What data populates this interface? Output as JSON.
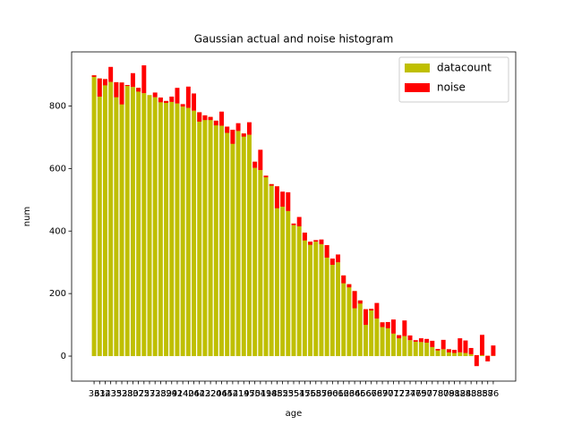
{
  "chart_data": {
    "type": "stacked_bar",
    "title": "Gaussian actual and noise histogram",
    "x_label": "age",
    "y_label": "num",
    "categories": [
      "36",
      "31",
      "34",
      "23",
      "35",
      "33",
      "28",
      "30",
      "37",
      "25",
      "27",
      "32",
      "38",
      "39",
      "29",
      "41",
      "24",
      "40",
      "26",
      "42",
      "43",
      "22",
      "20",
      "46",
      "45",
      "44",
      "21",
      "19",
      "47",
      "50",
      "51",
      "49",
      "18",
      "48",
      "52",
      "53",
      "55",
      "54",
      "17",
      "56",
      "58",
      "57",
      "59",
      "60",
      "61",
      "62",
      "63",
      "64",
      "65",
      "66",
      "67",
      "68",
      "69",
      "70",
      "71",
      "72",
      "73",
      "74",
      "76",
      "75",
      "90",
      "77",
      "78",
      "80",
      "79",
      "81",
      "82",
      "84",
      "83",
      "88",
      "85",
      "87",
      "86"
    ],
    "series": [
      {
        "name": "datacount",
        "color": "#bfbf00",
        "values": [
          898,
          888,
          886,
          877,
          876,
          875,
          867,
          861,
          858,
          841,
          835,
          828,
          827,
          816,
          813,
          808,
          798,
          794,
          785,
          780,
          770,
          765,
          753,
          737,
          734,
          724,
          720,
          712,
          708,
          602,
          595,
          577,
          550,
          543,
          478,
          464,
          419,
          415,
          395,
          366,
          366,
          358,
          355,
          312,
          300,
          258,
          230,
          208,
          178,
          150,
          151,
          120,
          108,
          89,
          72,
          67,
          64,
          51,
          46,
          45,
          43,
          29,
          23,
          22,
          22,
          20,
          12,
          10,
          6,
          3,
          3,
          1,
          1
        ]
      },
      {
        "name": "noise",
        "color": "#ff0000",
        "values": [
          -5,
          -58,
          -20,
          48,
          -48,
          -70,
          -3,
          44,
          -12,
          89,
          0,
          15,
          -15,
          -6,
          17,
          50,
          8,
          68,
          55,
          -30,
          -15,
          -10,
          -15,
          45,
          -20,
          -45,
          25,
          -10,
          40,
          20,
          65,
          -5,
          -5,
          -70,
          48,
          60,
          5,
          30,
          -25,
          -10,
          5,
          15,
          -40,
          -20,
          25,
          -25,
          -10,
          -55,
          -10,
          -50,
          -5,
          50,
          -15,
          20,
          45,
          -10,
          50,
          15,
          5,
          12,
          12,
          20,
          -5,
          30,
          -10,
          -10,
          45,
          40,
          20,
          -35,
          65,
          -18,
          33
        ]
      }
    ],
    "ylim": [
      -80,
      973
    ],
    "yticks": [
      0,
      200,
      400,
      600,
      800
    ],
    "legend": "upper right"
  }
}
